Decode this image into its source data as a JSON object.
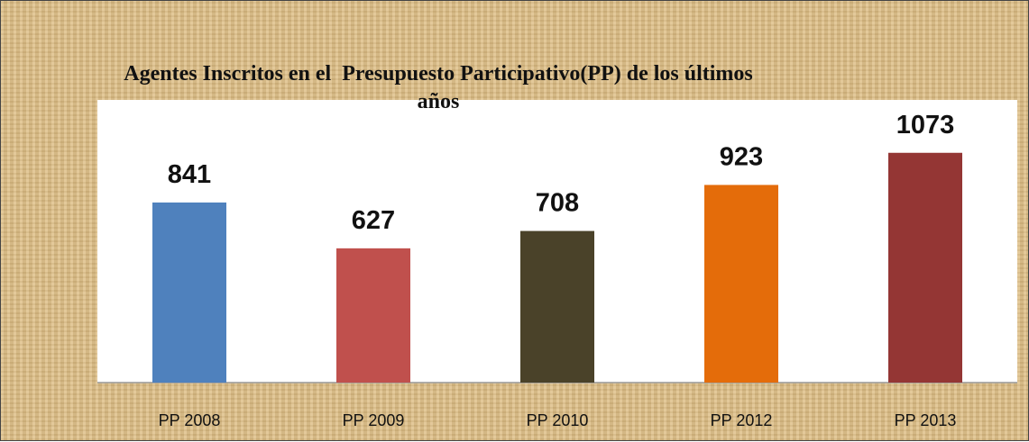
{
  "chart_data": {
    "type": "bar",
    "title": "Agentes Inscritos en el  Presupuesto Participativo(PP) de los últimos años",
    "categories": [
      "PP 2008",
      "PP 2009",
      "PP 2010",
      "PP 2012",
      "PP 2013"
    ],
    "values": [
      841,
      627,
      708,
      923,
      1073
    ],
    "colors": [
      "#4f81bd",
      "#c0504d",
      "#4a4229",
      "#e46c0a",
      "#943634"
    ],
    "ylim": [
      0,
      1320
    ]
  }
}
